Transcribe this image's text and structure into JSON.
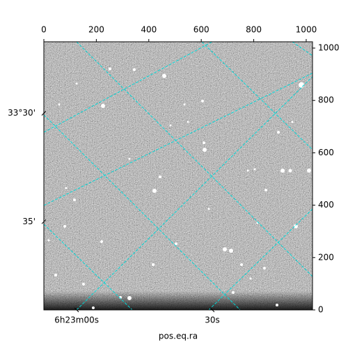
{
  "chart_data": {
    "type": "image",
    "xlabel": "pos.eq.ra",
    "xlim": [
      0,
      1024
    ],
    "ylim": [
      0,
      1024
    ],
    "xticks": [
      0,
      200,
      400,
      600,
      800,
      1000
    ],
    "yticks": [
      0,
      200,
      400,
      600,
      800,
      1000
    ],
    "x_world_ticks": [
      {
        "value": 125,
        "label": "6h23m00s"
      },
      {
        "value": 642,
        "label": "30s"
      }
    ],
    "y_world_ticks": [
      {
        "value": 751,
        "label": "33°30'"
      },
      {
        "value": 337,
        "label": "35'"
      }
    ],
    "grid_color": "#00d8d8"
  }
}
